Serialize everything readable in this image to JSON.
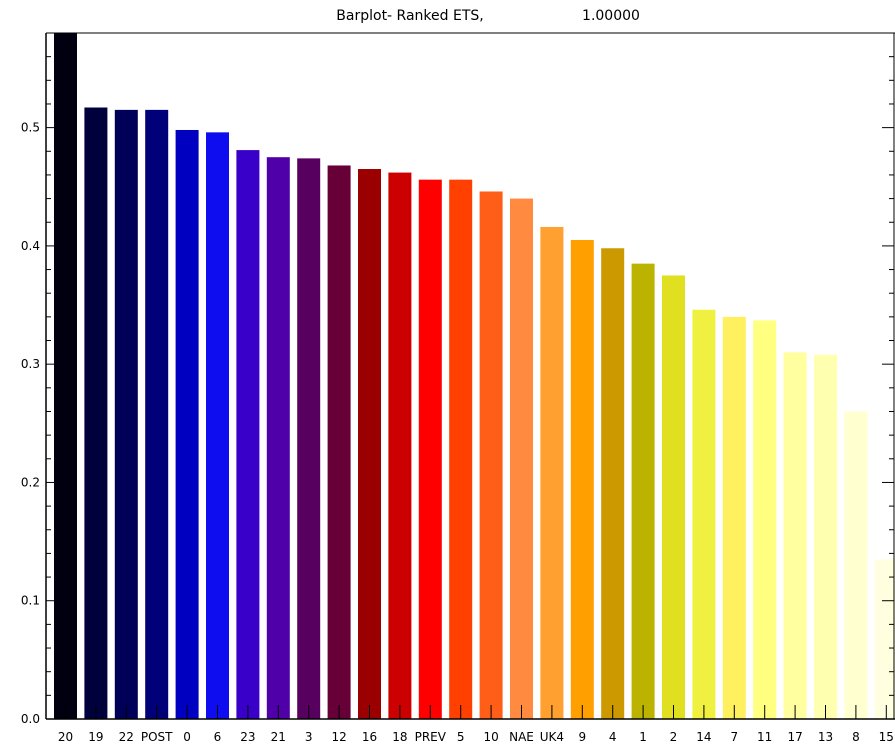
{
  "chart_data": {
    "type": "bar",
    "title_left": "Barplot- Ranked ETS,",
    "title_right": "1.00000",
    "xlabel": "",
    "ylabel": "",
    "ylim": [
      0,
      0.58
    ],
    "y_ticks": [
      "0.0",
      "0.1",
      "0.2",
      "0.3",
      "0.4",
      "0.5"
    ],
    "y_tick_values": [
      0.0,
      0.1,
      0.2,
      0.3,
      0.4,
      0.5
    ],
    "categories": [
      "20",
      "19",
      "22",
      "POST",
      "0",
      "6",
      "23",
      "21",
      "3",
      "12",
      "16",
      "18",
      "PREV",
      "5",
      "10",
      "NAE",
      "UK4",
      "9",
      "4",
      "1",
      "2",
      "14",
      "7",
      "11",
      "17",
      "13",
      "8",
      "15"
    ],
    "values": [
      0.58,
      0.517,
      0.515,
      0.515,
      0.498,
      0.496,
      0.481,
      0.475,
      0.474,
      0.468,
      0.465,
      0.462,
      0.456,
      0.456,
      0.446,
      0.44,
      0.416,
      0.405,
      0.398,
      0.385,
      0.375,
      0.346,
      0.34,
      0.337,
      0.31,
      0.308,
      0.26,
      0.135
    ],
    "colors": [
      "#000010",
      "#00003c",
      "#000058",
      "#000078",
      "#0000c0",
      "#0d0df0",
      "#3800c8",
      "#5000a8",
      "#580060",
      "#680038",
      "#9a0000",
      "#cc0000",
      "#ff0000",
      "#ff4000",
      "#ff5e18",
      "#ff8a40",
      "#ffa030",
      "#ffa000",
      "#cc9900",
      "#bbb300",
      "#e0e020",
      "#f0f040",
      "#fff060",
      "#ffff80",
      "#ffffa0",
      "#ffffb0",
      "#ffffd0",
      "#ffffe0"
    ],
    "grid": false,
    "legend": "none"
  }
}
